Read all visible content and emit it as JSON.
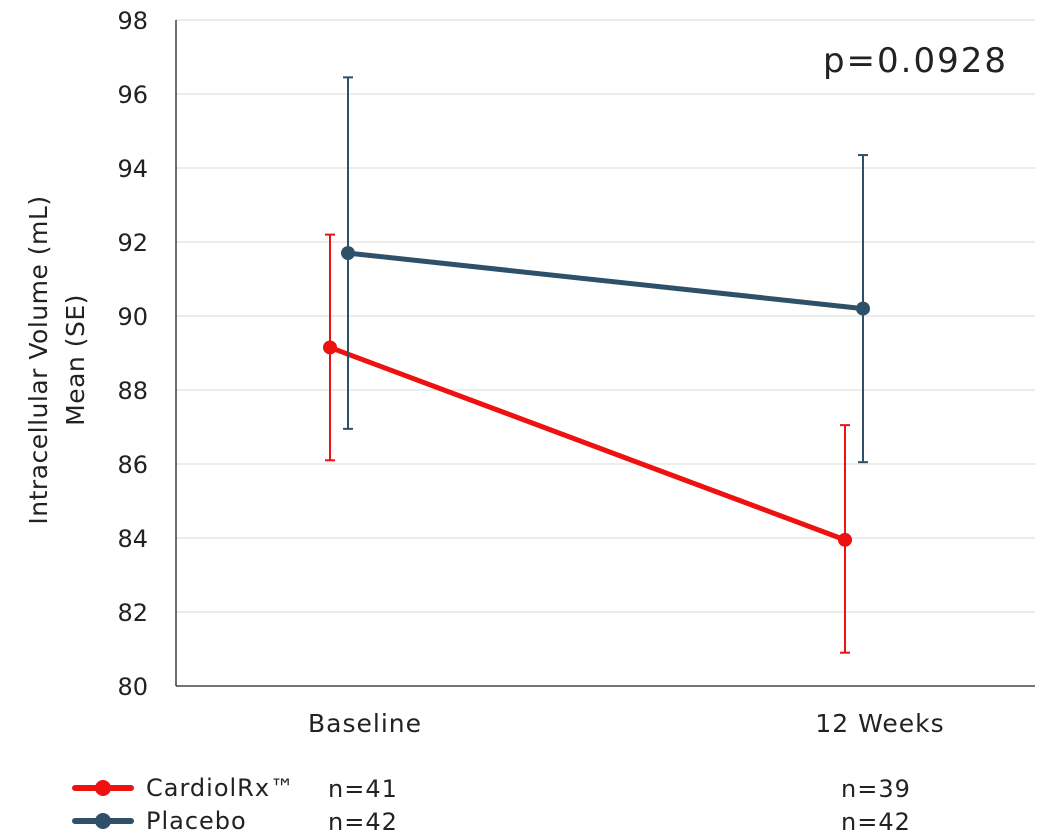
{
  "chart_data": {
    "type": "line",
    "categories": [
      "Baseline",
      "12 Weeks"
    ],
    "ylabel_lines": [
      "Intracellular Volume (mL)",
      "Mean (SE)"
    ],
    "ylim": [
      80,
      98
    ],
    "yticks": [
      80,
      82,
      84,
      86,
      88,
      90,
      92,
      94,
      96,
      98
    ],
    "grid": true,
    "annotation": "p=0.0928",
    "series": [
      {
        "name": "CardiolRx™",
        "color": "#ee1111",
        "values": [
          89.15,
          83.95
        ],
        "errors": [
          [
            3.05,
            3.05
          ],
          [
            3.05,
            3.1
          ]
        ],
        "n": [
          "n=41",
          "n=39"
        ]
      },
      {
        "name": "Placebo",
        "color": "#2f5069",
        "values": [
          91.7,
          90.2
        ],
        "errors": [
          [
            4.75,
            4.75
          ],
          [
            4.15,
            4.15
          ]
        ],
        "n": [
          "n=42",
          "n=42"
        ]
      }
    ]
  }
}
